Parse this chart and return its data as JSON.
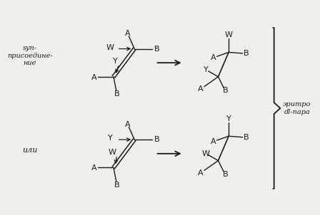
{
  "bg_color": "#f0f0ea",
  "syn_label": "syn-\nприсоедине-\nние",
  "ili_label": "или",
  "erythro_label": "эритро\ndl-пара",
  "line_color": "#1a1a1a",
  "text_color": "#1a1a1a",
  "font_size": 8,
  "small_font": 7
}
